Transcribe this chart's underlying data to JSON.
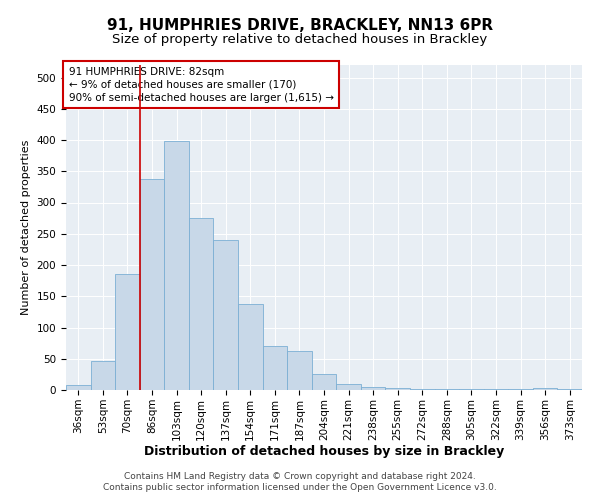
{
  "title1": "91, HUMPHRIES DRIVE, BRACKLEY, NN13 6PR",
  "title2": "Size of property relative to detached houses in Brackley",
  "xlabel": "Distribution of detached houses by size in Brackley",
  "ylabel": "Number of detached properties",
  "categories": [
    "36sqm",
    "53sqm",
    "70sqm",
    "86sqm",
    "103sqm",
    "120sqm",
    "137sqm",
    "154sqm",
    "171sqm",
    "187sqm",
    "204sqm",
    "221sqm",
    "238sqm",
    "255sqm",
    "272sqm",
    "288sqm",
    "305sqm",
    "322sqm",
    "339sqm",
    "356sqm",
    "373sqm"
  ],
  "values": [
    8,
    47,
    185,
    338,
    398,
    275,
    240,
    137,
    70,
    63,
    25,
    10,
    5,
    3,
    2,
    2,
    2,
    2,
    2,
    4,
    2
  ],
  "bar_color": "#c8d8e8",
  "bar_edge_color": "#7bafd4",
  "vline_color": "#cc0000",
  "annotation_title": "91 HUMPHRIES DRIVE: 82sqm",
  "annotation_line1": "← 9% of detached houses are smaller (170)",
  "annotation_line2": "90% of semi-detached houses are larger (1,615) →",
  "annotation_box_color": "#ffffff",
  "annotation_border_color": "#cc0000",
  "ylim": [
    0,
    520
  ],
  "yticks": [
    0,
    50,
    100,
    150,
    200,
    250,
    300,
    350,
    400,
    450,
    500
  ],
  "background_color": "#e8eef4",
  "footer_line1": "Contains HM Land Registry data © Crown copyright and database right 2024.",
  "footer_line2": "Contains public sector information licensed under the Open Government Licence v3.0.",
  "title1_fontsize": 11,
  "title2_fontsize": 9.5,
  "xlabel_fontsize": 9,
  "ylabel_fontsize": 8,
  "tick_fontsize": 7.5,
  "annotation_fontsize": 7.5,
  "footer_fontsize": 6.5
}
